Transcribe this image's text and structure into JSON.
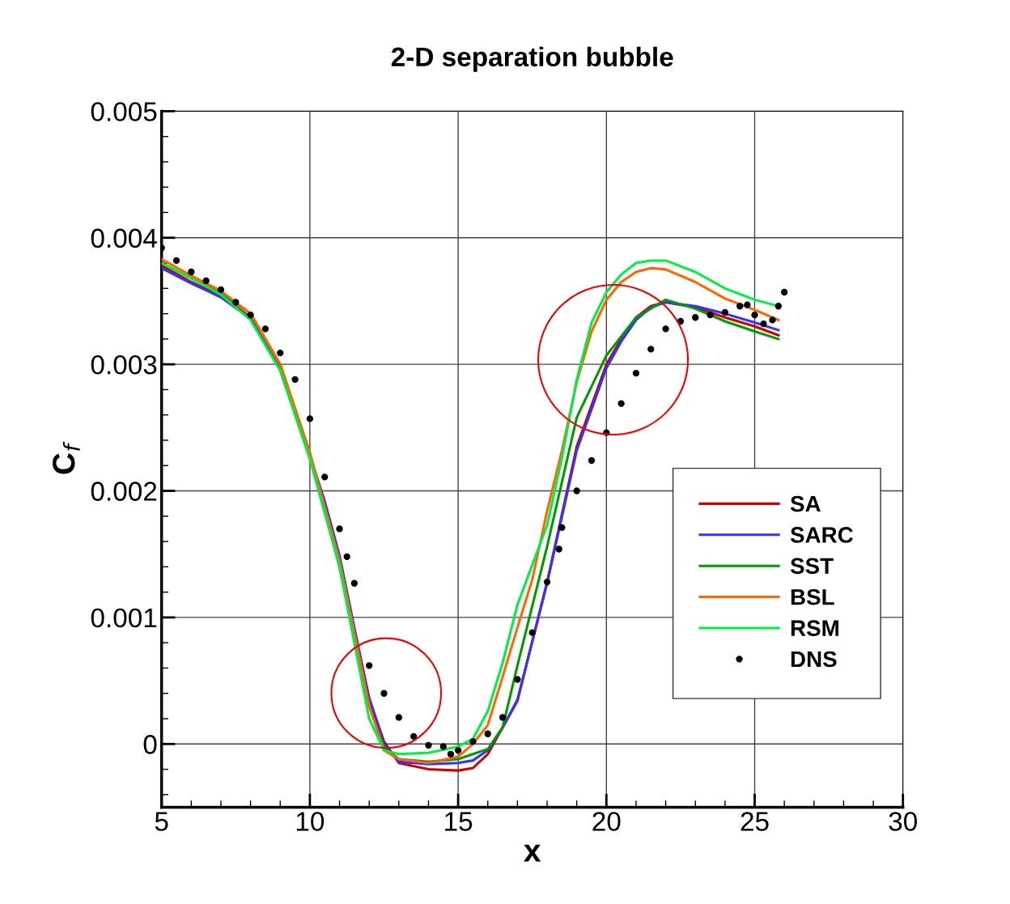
{
  "chart_data": {
    "type": "line",
    "title": "2-D separation bubble",
    "xlabel": "x",
    "ylabel": "C$_{f}$",
    "xlim": [
      5,
      30
    ],
    "xticks": [
      5,
      10,
      15,
      20,
      25,
      30
    ],
    "ylim": [
      -0.0005,
      0.005
    ],
    "yticks": [
      0,
      0.001,
      0.002,
      0.003,
      0.004,
      0.005
    ],
    "grid": true,
    "legend": "lower right",
    "line_style": "solid",
    "series": [
      {
        "name": "SA",
        "color": "#cc0000",
        "x": [
          5,
          6,
          7,
          8,
          9,
          10,
          10.5,
          11,
          11.5,
          12,
          12.5,
          13,
          14,
          15,
          15.5,
          16,
          16.5,
          17,
          18,
          19,
          20,
          20.5,
          21,
          21.5,
          22,
          23,
          24,
          25,
          25.8
        ],
        "values": [
          0.00378,
          0.00365,
          0.00354,
          0.00337,
          0.00296,
          0.00226,
          0.0019,
          0.00147,
          0.0009,
          0.00036,
          2e-05,
          -0.00015,
          -0.0002,
          -0.00021,
          -0.00019,
          -8e-05,
          0.00013,
          0.00034,
          0.00128,
          0.00235,
          0.003,
          0.0032,
          0.00337,
          0.00346,
          0.00349,
          0.00345,
          0.00337,
          0.0033,
          0.00323
        ]
      },
      {
        "name": "SARC",
        "color": "#3333ff",
        "x": [
          5,
          6,
          7,
          8,
          9,
          10,
          10.5,
          11,
          11.5,
          12,
          12.5,
          13,
          14,
          15,
          15.5,
          16,
          16.5,
          17,
          18,
          19,
          20,
          20.5,
          21,
          21.5,
          22,
          23,
          24,
          25,
          25.8
        ],
        "values": [
          0.00376,
          0.00364,
          0.00353,
          0.00336,
          0.00296,
          0.00228,
          0.00192,
          0.00149,
          0.00092,
          0.00036,
          0.0,
          -0.00014,
          -0.00016,
          -0.00015,
          -0.00013,
          -5e-05,
          0.00013,
          0.00035,
          0.00127,
          0.00232,
          0.00297,
          0.00318,
          0.00335,
          0.00345,
          0.00349,
          0.00346,
          0.0034,
          0.00333,
          0.00327
        ]
      },
      {
        "name": "SST",
        "color": "#009900",
        "x": [
          5,
          6,
          7,
          8,
          9,
          10,
          11,
          11.5,
          12,
          12.5,
          13,
          14,
          15,
          16,
          16.5,
          17,
          18,
          19,
          20,
          21,
          22,
          23,
          24,
          25,
          25.8
        ],
        "values": [
          0.0038,
          0.00368,
          0.00356,
          0.0034,
          0.003,
          0.0023,
          0.0014,
          0.00085,
          0.0003,
          -3e-05,
          -0.00012,
          -0.00014,
          -0.00012,
          -4e-05,
          0.00013,
          0.00062,
          0.00156,
          0.00258,
          0.00307,
          0.00337,
          0.00351,
          0.00344,
          0.00334,
          0.00326,
          0.0032
        ]
      },
      {
        "name": "BSL",
        "color": "#ff6600",
        "x": [
          5,
          6,
          7,
          8,
          9,
          10,
          11,
          11.5,
          12,
          12.5,
          13,
          14,
          15,
          15.5,
          16,
          16.5,
          17,
          17.5,
          18,
          18.5,
          19,
          19.5,
          20,
          20.5,
          21,
          21.5,
          22,
          23,
          24,
          25,
          25.8
        ],
        "values": [
          0.00383,
          0.0037,
          0.00358,
          0.0034,
          0.003,
          0.0023,
          0.00145,
          0.00088,
          0.0003,
          -5e-05,
          -0.00012,
          -0.00015,
          -0.0001,
          0.0,
          0.00015,
          0.00053,
          0.00092,
          0.0013,
          0.00184,
          0.00232,
          0.00286,
          0.00326,
          0.00351,
          0.00365,
          0.00373,
          0.00376,
          0.00375,
          0.00365,
          0.00352,
          0.00343,
          0.00335
        ]
      },
      {
        "name": "RSM",
        "color": "#00ee44",
        "x": [
          5,
          6,
          7,
          8,
          9,
          10,
          11,
          11.5,
          12,
          12.5,
          13,
          14,
          15,
          15.5,
          16,
          16.5,
          17,
          18,
          18.5,
          19,
          19.5,
          20,
          20.5,
          21,
          21.5,
          22,
          23,
          24,
          25,
          25.8
        ],
        "values": [
          0.0038,
          0.00368,
          0.00355,
          0.00335,
          0.00295,
          0.00225,
          0.0014,
          0.0008,
          0.0002,
          -5e-05,
          -8e-05,
          -7e-05,
          -2e-05,
          4e-05,
          0.00026,
          0.00064,
          0.0011,
          0.00173,
          0.00226,
          0.00288,
          0.00333,
          0.00357,
          0.00371,
          0.0038,
          0.00382,
          0.00382,
          0.00373,
          0.0036,
          0.00351,
          0.00346
        ]
      },
      {
        "name": "DNS",
        "type": "scatter",
        "marker": "circle",
        "color": "#000000",
        "x": [
          5,
          5.5,
          6,
          6.5,
          7,
          7.5,
          8,
          8.5,
          9,
          9.5,
          10,
          10.5,
          11,
          11.25,
          11.5,
          12,
          12.5,
          13,
          13.5,
          14,
          14.5,
          14.75,
          15,
          15.5,
          16,
          16.5,
          17,
          17.5,
          18,
          18.4,
          18.5,
          19,
          19.5,
          20,
          20.5,
          21,
          21.5,
          22,
          22.5,
          23,
          23.5,
          24,
          24.5,
          24.75,
          25,
          25.3,
          25.6,
          25.8,
          26
        ],
        "values": [
          0.00392,
          0.00382,
          0.00373,
          0.00366,
          0.00359,
          0.00349,
          0.00339,
          0.00328,
          0.00309,
          0.00288,
          0.00257,
          0.00211,
          0.0017,
          0.00148,
          0.00127,
          0.00062,
          0.0004,
          0.00021,
          6e-05,
          -1e-05,
          -2e-05,
          -8e-05,
          -5e-05,
          2e-05,
          8e-05,
          0.00021,
          0.00051,
          0.00088,
          0.00128,
          0.00154,
          0.00171,
          0.002,
          0.00224,
          0.00246,
          0.00269,
          0.00293,
          0.00312,
          0.00328,
          0.00334,
          0.00337,
          0.00339,
          0.00341,
          0.00346,
          0.00347,
          0.00339,
          0.00332,
          0.00335,
          0.00346,
          0.00357
        ]
      }
    ]
  }
}
